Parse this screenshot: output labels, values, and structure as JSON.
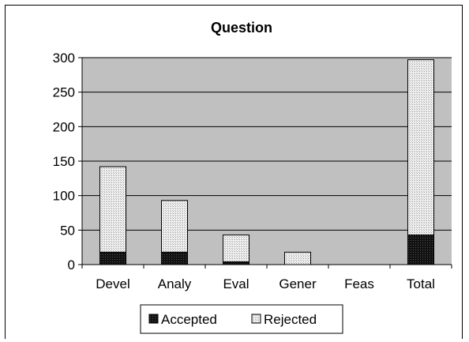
{
  "chart_data": {
    "type": "bar",
    "stacked": true,
    "title": "Question",
    "categories": [
      "Devel",
      "Analy",
      "Eval",
      "Gener",
      "Feas",
      "Total"
    ],
    "series": [
      {
        "name": "Accepted",
        "values": [
          18,
          18,
          4,
          0,
          0,
          43
        ]
      },
      {
        "name": "Rejected",
        "values": [
          124,
          75,
          39,
          18,
          0,
          254
        ]
      }
    ],
    "yticks": [
      "0",
      "50",
      "100",
      "150",
      "200",
      "250",
      "300"
    ],
    "ylim": [
      0,
      300
    ],
    "grid": true,
    "legend_position": "bottom",
    "colors": {
      "plot_bg": "#c0c0c0",
      "accepted": "#1a1a1a",
      "rejected": "#eeeeee",
      "grid": "#000000"
    }
  }
}
